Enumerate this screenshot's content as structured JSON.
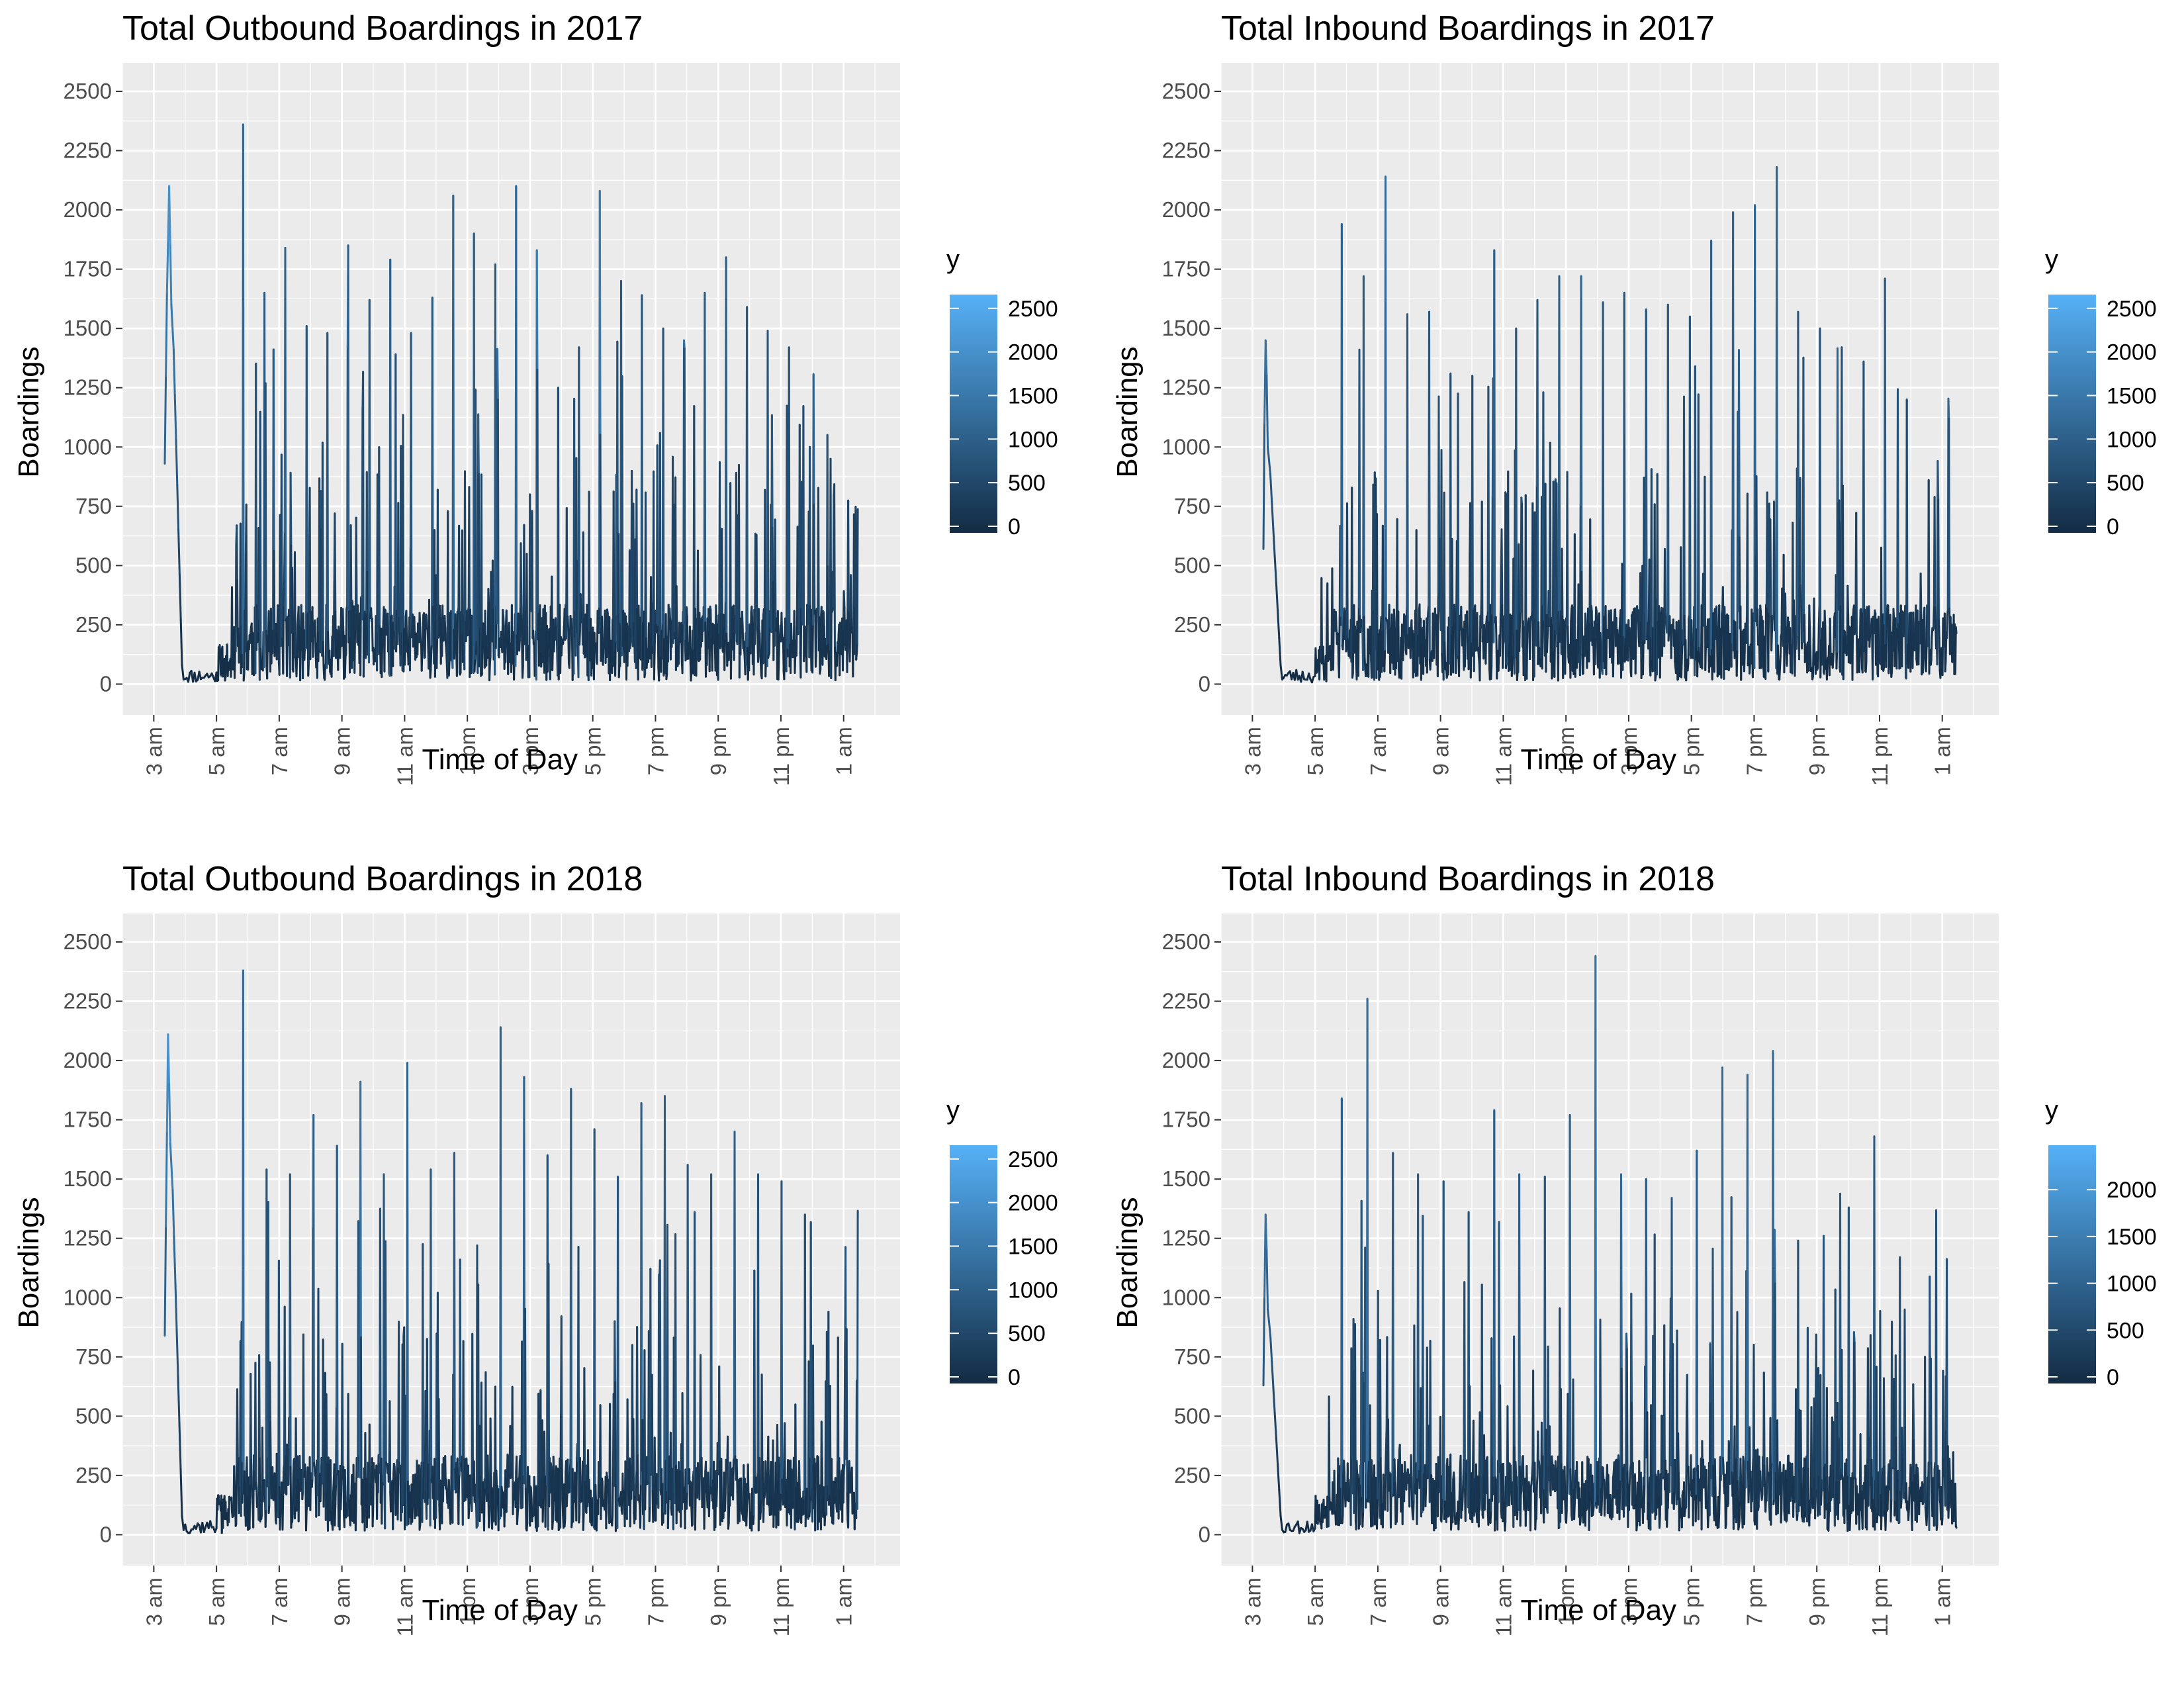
{
  "chart_data": [
    {
      "type": "line",
      "title": "Total Outbound Boardings in 2017",
      "xlabel": "Time of Day",
      "ylabel": "Boardings",
      "x_ticks": [
        "3 am",
        "5 am",
        "7 am",
        "9 am",
        "11 am",
        "1 pm",
        "3 pm",
        "5 pm",
        "7 pm",
        "9 pm",
        "11 pm",
        "1 am"
      ],
      "y_ticks": [
        0,
        250,
        500,
        750,
        1000,
        1250,
        1500,
        1750,
        2000,
        2250,
        2500
      ],
      "ylim": [
        -130,
        2620
      ],
      "xlim_hours": [
        2.0,
        26.8
      ],
      "grid": true,
      "color_scale": {
        "title": "y",
        "breaks": [
          0,
          500,
          1000,
          1500,
          2000,
          2500
        ],
        "max": 2620,
        "low": "#132b43",
        "high": "#56b1f7"
      },
      "shape": {
        "start_hour": 3.35,
        "end_hour": 25.45,
        "start_values": [
          930,
          1300,
          1650,
          1870,
          2100,
          1850,
          1600
        ],
        "peaks": [
          2360,
          1650,
          1840,
          1510,
          1480,
          1850,
          1620,
          1790,
          1480,
          1630,
          2060,
          1900,
          1770,
          2100,
          1830,
          1250,
          1420,
          2080,
          1700,
          1640,
          1500,
          1450,
          1650,
          1800,
          1590,
          1490,
          1420,
          1000,
          950
        ],
        "seed": 11
      }
    },
    {
      "type": "line",
      "title": "Total Inbound Boardings in 2017",
      "xlabel": "Time of Day",
      "ylabel": "Boardings",
      "x_ticks": [
        "3 am",
        "5 am",
        "7 am",
        "9 am",
        "11 am",
        "1 pm",
        "3 pm",
        "5 pm",
        "7 pm",
        "9 pm",
        "11 pm",
        "1 am"
      ],
      "y_ticks": [
        0,
        250,
        500,
        750,
        1000,
        1250,
        1500,
        1750,
        2000,
        2250,
        2500
      ],
      "ylim": [
        -130,
        2620
      ],
      "xlim_hours": [
        2.0,
        26.8
      ],
      "grid": true,
      "color_scale": {
        "title": "y",
        "breaks": [
          0,
          500,
          1000,
          1500,
          2000,
          2500
        ],
        "max": 2620,
        "low": "#132b43",
        "high": "#56b1f7"
      },
      "shape": {
        "start_hour": 3.35,
        "end_hour": 25.45,
        "start_values": [
          570,
          1100,
          1450,
          1300,
          1000
        ],
        "peaks": [
          1940,
          1720,
          2140,
          1560,
          1570,
          1310,
          1300,
          1830,
          1500,
          1620,
          1720,
          1720,
          1610,
          1650,
          1580,
          1600,
          1550,
          1870,
          1990,
          2020,
          2180,
          1570,
          1500,
          1420,
          1360,
          1710,
          1200,
          860
        ],
        "seed": 23
      }
    },
    {
      "type": "line",
      "title": "Total Outbound Boardings in 2018",
      "xlabel": "Time of Day",
      "ylabel": "Boardings",
      "x_ticks": [
        "3 am",
        "5 am",
        "7 am",
        "9 am",
        "11 am",
        "1 pm",
        "3 pm",
        "5 pm",
        "7 pm",
        "9 pm",
        "11 pm",
        "1 am"
      ],
      "y_ticks": [
        0,
        250,
        500,
        750,
        1000,
        1250,
        1500,
        1750,
        2000,
        2250,
        2500
      ],
      "ylim": [
        -130,
        2620
      ],
      "xlim_hours": [
        2.0,
        26.8
      ],
      "grid": true,
      "color_scale": {
        "title": "y",
        "breaks": [
          0,
          500,
          1000,
          1500,
          2000,
          2500
        ],
        "max": 2620,
        "low": "#132b43",
        "high": "#56b1f7"
      },
      "shape": {
        "start_hour": 3.35,
        "end_hour": 25.45,
        "start_values": [
          840,
          1300,
          1700,
          2110,
          1900,
          1650
        ],
        "peaks": [
          2380,
          1540,
          1520,
          1770,
          1640,
          1910,
          1520,
          1990,
          1540,
          1610,
          1220,
          2140,
          1930,
          1600,
          1880,
          1710,
          1510,
          1820,
          1850,
          1560,
          1520,
          1700,
          1520,
          1490,
          1350,
          940
        ],
        "seed": 37
      }
    },
    {
      "type": "line",
      "title": "Total Inbound Boardings in 2018",
      "xlabel": "Time of Day",
      "ylabel": "Boardings",
      "x_ticks": [
        "3 am",
        "5 am",
        "7 am",
        "9 am",
        "11 am",
        "1 pm",
        "3 pm",
        "5 pm",
        "7 pm",
        "9 pm",
        "11 pm",
        "1 am"
      ],
      "y_ticks": [
        0,
        250,
        500,
        750,
        1000,
        1250,
        1500,
        1750,
        2000,
        2250,
        2500
      ],
      "ylim": [
        -130,
        2620
      ],
      "xlim_hours": [
        2.0,
        26.8
      ],
      "grid": true,
      "color_scale": {
        "title": "y",
        "breaks": [
          0,
          500,
          1000,
          1500,
          2000
        ],
        "max": 2440,
        "low": "#132b43",
        "high": "#56b1f7"
      },
      "shape": {
        "start_hour": 3.35,
        "end_hour": 25.45,
        "start_values": [
          630,
          1000,
          1350,
          1200,
          950
        ],
        "peaks": [
          1840,
          2260,
          1610,
          1520,
          1490,
          1360,
          1790,
          1520,
          1510,
          1770,
          2440,
          1520,
          1500,
          1420,
          1620,
          1970,
          1940,
          2040,
          1240,
          1260,
          1380,
          1680,
          1170,
          750
        ],
        "seed": 53
      }
    }
  ]
}
